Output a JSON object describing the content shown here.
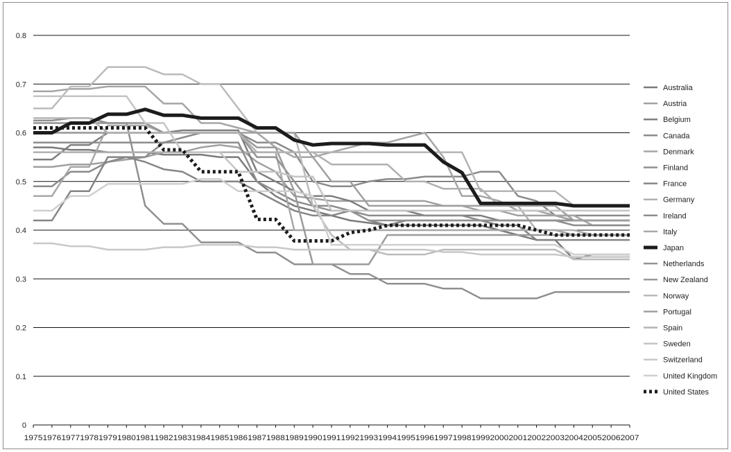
{
  "chart_data": {
    "type": "line",
    "title": "",
    "xlabel": "",
    "ylabel": "",
    "ylim": [
      0,
      0.8
    ],
    "yticks": [
      "0",
      "0.1",
      "0.2",
      "0.3",
      "0.4",
      "0.5",
      "0.6",
      "0.7",
      "0.8"
    ],
    "grid": true,
    "legend_position": "right",
    "x": [
      "1975",
      "1976",
      "1977",
      "1978",
      "1979",
      "1980",
      "1981",
      "1982",
      "1983",
      "1984",
      "1985",
      "1986",
      "1987",
      "1988",
      "1989",
      "1990",
      "1991",
      "1992",
      "1993",
      "1994",
      "1995",
      "1996",
      "1997",
      "1998",
      "1999",
      "2000",
      "2001",
      "2002",
      "2003",
      "2004",
      "2005",
      "2006",
      "2007"
    ],
    "series": [
      {
        "name": "Australia",
        "color": "#7a7a7a",
        "dash": "",
        "width": 2.5,
        "values": [
          0.57,
          0.57,
          0.565,
          0.565,
          0.56,
          0.56,
          0.56,
          0.555,
          0.555,
          0.555,
          0.55,
          0.55,
          0.5,
          0.47,
          0.45,
          0.44,
          0.43,
          0.42,
          0.415,
          0.41,
          0.41,
          0.41,
          0.41,
          0.41,
          0.41,
          0.4,
          0.39,
          0.38,
          0.38,
          0.34,
          0.35,
          0.35,
          0.35
        ]
      },
      {
        "name": "Austria",
        "color": "#a0a0a0",
        "dash": "",
        "width": 2.5,
        "values": [
          0.53,
          0.53,
          0.535,
          0.535,
          0.54,
          0.545,
          0.55,
          0.56,
          0.56,
          0.57,
          0.575,
          0.57,
          0.54,
          0.52,
          0.47,
          0.465,
          0.46,
          0.46,
          0.46,
          0.46,
          0.46,
          0.46,
          0.45,
          0.45,
          0.44,
          0.44,
          0.43,
          0.43,
          0.43,
          0.42,
          0.42,
          0.42,
          0.42
        ]
      },
      {
        "name": "Belgium",
        "color": "#7e7e7e",
        "dash": "",
        "width": 2.5,
        "values": [
          0.545,
          0.545,
          0.575,
          0.575,
          0.6,
          0.6,
          0.6,
          0.6,
          0.605,
          0.605,
          0.605,
          0.605,
          0.52,
          0.5,
          0.48,
          0.47,
          0.47,
          0.46,
          0.44,
          0.44,
          0.44,
          0.43,
          0.43,
          0.43,
          0.43,
          0.42,
          0.42,
          0.42,
          0.42,
          0.42,
          0.42,
          0.42,
          0.42
        ]
      },
      {
        "name": "Canada",
        "color": "#8a8a8a",
        "dash": "",
        "width": 2.5,
        "values": [
          0.49,
          0.49,
          0.52,
          0.52,
          0.54,
          0.55,
          0.55,
          0.58,
          0.59,
          0.6,
          0.6,
          0.6,
          0.58,
          0.58,
          0.56,
          0.5,
          0.49,
          0.49,
          0.5,
          0.505,
          0.505,
          0.51,
          0.51,
          0.51,
          0.52,
          0.52,
          0.47,
          0.46,
          0.43,
          0.43,
          0.43,
          0.43,
          0.43
        ]
      },
      {
        "name": "Denmark",
        "color": "#a5a5a5",
        "dash": "",
        "width": 2.5,
        "values": [
          0.685,
          0.685,
          0.69,
          0.69,
          0.695,
          0.695,
          0.695,
          0.66,
          0.66,
          0.62,
          0.62,
          0.61,
          0.6,
          0.57,
          0.55,
          0.55,
          0.56,
          0.57,
          0.58,
          0.58,
          0.59,
          0.6,
          0.55,
          0.47,
          0.47,
          0.46,
          0.44,
          0.44,
          0.43,
          0.43,
          0.41,
          0.41,
          0.41
        ]
      },
      {
        "name": "Finland",
        "color": "#8f8f8f",
        "dash": "",
        "width": 2.5,
        "values": [
          0.625,
          0.625,
          0.63,
          0.63,
          0.62,
          0.62,
          0.45,
          0.413,
          0.413,
          0.375,
          0.375,
          0.375,
          0.354,
          0.354,
          0.33,
          0.33,
          0.33,
          0.31,
          0.31,
          0.29,
          0.29,
          0.29,
          0.28,
          0.28,
          0.26,
          0.26,
          0.26,
          0.26,
          0.273,
          0.273,
          0.273,
          0.273,
          0.273
        ]
      },
      {
        "name": "France",
        "color": "#858585",
        "dash": "",
        "width": 2.5,
        "values": [
          0.42,
          0.42,
          0.48,
          0.48,
          0.55,
          0.55,
          0.54,
          0.525,
          0.52,
          0.5,
          0.5,
          0.5,
          0.48,
          0.46,
          0.44,
          0.43,
          0.43,
          0.44,
          0.42,
          0.41,
          0.42,
          0.42,
          0.42,
          0.42,
          0.42,
          0.41,
          0.41,
          0.38,
          0.38,
          0.38,
          0.38,
          0.38,
          0.38
        ]
      },
      {
        "name": "Germany",
        "color": "#b0b0b0",
        "dash": "",
        "width": 2.5,
        "values": [
          0.56,
          0.56,
          0.56,
          0.56,
          0.56,
          0.56,
          0.56,
          0.56,
          0.56,
          0.56,
          0.56,
          0.56,
          0.56,
          0.56,
          0.56,
          0.56,
          0.535,
          0.535,
          0.535,
          0.535,
          0.5,
          0.5,
          0.485,
          0.485,
          0.485,
          0.45,
          0.45,
          0.4,
          0.4,
          0.4,
          0.39,
          0.39,
          0.39
        ]
      },
      {
        "name": "Ireland",
        "color": "#8c8c8c",
        "dash": "",
        "width": 2.5,
        "values": [
          0.58,
          0.58,
          0.58,
          0.58,
          0.58,
          0.58,
          0.58,
          0.58,
          0.58,
          0.58,
          0.58,
          0.58,
          0.5,
          0.48,
          0.46,
          0.45,
          0.45,
          0.44,
          0.43,
          0.43,
          0.43,
          0.43,
          0.43,
          0.43,
          0.42,
          0.42,
          0.42,
          0.42,
          0.42,
          0.41,
          0.41,
          0.41,
          0.41
        ]
      },
      {
        "name": "Italy",
        "color": "#a8a8a8",
        "dash": "",
        "width": 2.5,
        "values": [
          0.47,
          0.47,
          0.53,
          0.53,
          0.615,
          0.615,
          0.615,
          0.6,
          0.6,
          0.6,
          0.6,
          0.6,
          0.56,
          0.56,
          0.4,
          0.4,
          0.4,
          0.4,
          0.4,
          0.4,
          0.4,
          0.4,
          0.4,
          0.4,
          0.4,
          0.4,
          0.4,
          0.4,
          0.4,
          0.39,
          0.39,
          0.39,
          0.39
        ]
      },
      {
        "name": "Japan",
        "color": "#1c1c1c",
        "dash": "",
        "width": 5,
        "values": [
          0.6,
          0.6,
          0.62,
          0.62,
          0.638,
          0.638,
          0.648,
          0.636,
          0.636,
          0.63,
          0.63,
          0.63,
          0.61,
          0.61,
          0.585,
          0.575,
          0.578,
          0.578,
          0.578,
          0.575,
          0.575,
          0.575,
          0.54,
          0.518,
          0.455,
          0.455,
          0.455,
          0.455,
          0.455,
          0.45,
          0.45,
          0.45,
          0.45
        ]
      },
      {
        "name": "Netherlands",
        "color": "#939393",
        "dash": "",
        "width": 2.5,
        "values": [
          0.62,
          0.62,
          0.62,
          0.62,
          0.62,
          0.62,
          0.62,
          0.6,
          0.6,
          0.6,
          0.6,
          0.6,
          0.55,
          0.55,
          0.5,
          0.45,
          0.44,
          0.44,
          0.42,
          0.42,
          0.42,
          0.42,
          0.42,
          0.42,
          0.42,
          0.42,
          0.42,
          0.42,
          0.42,
          0.42,
          0.42,
          0.42,
          0.42
        ]
      },
      {
        "name": "New Zealand",
        "color": "#9a9a9a",
        "dash": "",
        "width": 2.5,
        "values": [
          0.6,
          0.6,
          0.6,
          0.6,
          0.6,
          0.6,
          0.6,
          0.6,
          0.6,
          0.6,
          0.6,
          0.6,
          0.57,
          0.57,
          0.48,
          0.33,
          0.33,
          0.33,
          0.33,
          0.39,
          0.39,
          0.39,
          0.39,
          0.39,
          0.39,
          0.39,
          0.39,
          0.39,
          0.39,
          0.39,
          0.39,
          0.39,
          0.39
        ]
      },
      {
        "name": "Norway",
        "color": "#bbbbbb",
        "dash": "",
        "width": 2.5,
        "values": [
          0.65,
          0.65,
          0.695,
          0.695,
          0.735,
          0.735,
          0.735,
          0.72,
          0.72,
          0.7,
          0.7,
          0.65,
          0.6,
          0.6,
          0.6,
          0.45,
          0.39,
          0.36,
          0.36,
          0.35,
          0.35,
          0.35,
          0.36,
          0.36,
          0.36,
          0.36,
          0.36,
          0.36,
          0.36,
          0.34,
          0.34,
          0.34,
          0.34
        ]
      },
      {
        "name": "Portugal",
        "color": "#9f9f9f",
        "dash": "",
        "width": 2.5,
        "values": [
          0.6,
          0.6,
          0.6,
          0.6,
          0.6,
          0.6,
          0.6,
          0.6,
          0.6,
          0.6,
          0.6,
          0.6,
          0.6,
          0.6,
          0.6,
          0.55,
          0.5,
          0.5,
          0.45,
          0.45,
          0.45,
          0.45,
          0.45,
          0.45,
          0.45,
          0.45,
          0.45,
          0.45,
          0.45,
          0.42,
          0.42,
          0.42,
          0.42
        ]
      },
      {
        "name": "Spain",
        "color": "#b4b4b4",
        "dash": "",
        "width": 2.5,
        "values": [
          0.63,
          0.63,
          0.63,
          0.63,
          0.6,
          0.6,
          0.6,
          0.6,
          0.6,
          0.6,
          0.6,
          0.6,
          0.56,
          0.56,
          0.56,
          0.56,
          0.56,
          0.56,
          0.56,
          0.56,
          0.56,
          0.56,
          0.56,
          0.56,
          0.48,
          0.48,
          0.48,
          0.48,
          0.48,
          0.45,
          0.45,
          0.45,
          0.45
        ]
      },
      {
        "name": "Sweden",
        "color": "#c4c4c4",
        "dash": "",
        "width": 2.5,
        "values": [
          0.675,
          0.675,
          0.675,
          0.675,
          0.675,
          0.675,
          0.62,
          0.62,
          0.56,
          0.56,
          0.56,
          0.52,
          0.52,
          0.52,
          0.51,
          0.51,
          0.44,
          0.44,
          0.44,
          0.44,
          0.44,
          0.44,
          0.44,
          0.44,
          0.44,
          0.44,
          0.44,
          0.44,
          0.44,
          0.44,
          0.44,
          0.44,
          0.44
        ]
      },
      {
        "name": "Switzerland",
        "color": "#c8c8c8",
        "dash": "",
        "width": 2.5,
        "values": [
          0.373,
          0.373,
          0.367,
          0.367,
          0.36,
          0.36,
          0.36,
          0.365,
          0.365,
          0.37,
          0.37,
          0.37,
          0.365,
          0.365,
          0.36,
          0.36,
          0.36,
          0.36,
          0.36,
          0.36,
          0.36,
          0.36,
          0.355,
          0.355,
          0.35,
          0.35,
          0.35,
          0.35,
          0.35,
          0.345,
          0.345,
          0.345,
          0.345
        ]
      },
      {
        "name": "United Kingdom",
        "color": "#cfcfcf",
        "dash": "",
        "width": 2.5,
        "values": [
          0.44,
          0.44,
          0.47,
          0.47,
          0.495,
          0.495,
          0.495,
          0.495,
          0.495,
          0.505,
          0.505,
          0.48,
          0.48,
          0.48,
          0.48,
          0.47,
          0.37,
          0.37,
          0.37,
          0.37,
          0.37,
          0.37,
          0.37,
          0.37,
          0.37,
          0.37,
          0.37,
          0.37,
          0.37,
          0.35,
          0.35,
          0.35,
          0.35
        ]
      },
      {
        "name": "United States",
        "color": "#1c1c1c",
        "dash": "4,4",
        "width": 5,
        "values": [
          0.61,
          0.61,
          0.61,
          0.61,
          0.61,
          0.61,
          0.61,
          0.565,
          0.565,
          0.52,
          0.52,
          0.52,
          0.422,
          0.422,
          0.378,
          0.378,
          0.378,
          0.395,
          0.4,
          0.41,
          0.41,
          0.41,
          0.41,
          0.41,
          0.41,
          0.41,
          0.41,
          0.4,
          0.39,
          0.39,
          0.39,
          0.39,
          0.39
        ]
      }
    ]
  }
}
